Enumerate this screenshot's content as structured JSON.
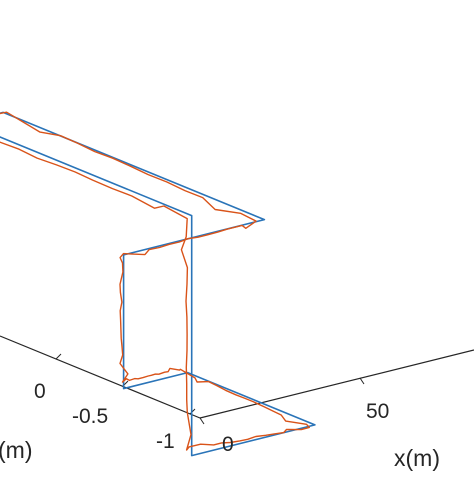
{
  "chart_data": {
    "type": "line",
    "projection": "3d",
    "title": "",
    "xlabel": "x(m)",
    "ylabel": "(m)",
    "zlabel": "",
    "grid": false,
    "x_ticks": [
      {
        "value": 0,
        "label": "0"
      },
      {
        "value": 50,
        "label": "50"
      }
    ],
    "y_ticks": [
      {
        "value": 0,
        "label": "0"
      },
      {
        "value": -0.5,
        "label": "-0.5"
      },
      {
        "value": -1,
        "label": "-1"
      }
    ],
    "colors": {
      "reference": "#2a74b8",
      "estimated": "#d95319",
      "axes": "#262626"
    },
    "series": [
      {
        "role": "reference",
        "points": [
          [
            -22,
            1.95,
            1.6
          ],
          [
            -6,
            1.95,
            1.6
          ],
          [
            0,
            1.95,
            1.6
          ],
          [
            0,
            1.95,
            0.75
          ],
          [
            0,
            1.95,
            0.75
          ],
          [
            62,
            1.95,
            0.75
          ],
          [
            62,
            0.0,
            0.75
          ],
          [
            18,
            0.0,
            0.75
          ],
          [
            18,
            0.0,
            -0.32
          ],
          [
            38,
            0.0,
            -0.32
          ],
          [
            38,
            -0.95,
            -0.32
          ],
          [
            -0.5,
            -0.95,
            -0.32
          ],
          [
            -0.5,
            -0.95,
            1.6
          ],
          [
            -0.5,
            1.0,
            1.6
          ],
          [
            -3,
            1.0,
            1.6
          ],
          [
            -3,
            1.0,
            -0.2
          ],
          [
            -30,
            1.0,
            -0.2
          ]
        ]
      },
      {
        "role": "estimated",
        "points": [
          [
            -22,
            1.9,
            1.55
          ],
          [
            -6,
            1.9,
            1.58
          ],
          [
            0.5,
            1.88,
            1.52
          ],
          [
            0.3,
            1.9,
            0.8
          ],
          [
            4,
            1.92,
            0.74
          ],
          [
            61,
            1.9,
            0.78
          ],
          [
            61.5,
            0.05,
            0.72
          ],
          [
            19,
            0.05,
            0.7
          ],
          [
            18.5,
            0.02,
            -0.28
          ],
          [
            37,
            0.03,
            -0.3
          ],
          [
            37.5,
            -0.92,
            -0.35
          ],
          [
            0.0,
            -0.9,
            -0.3
          ],
          [
            0.2,
            -0.9,
            1.55
          ],
          [
            0.0,
            1.05,
            1.55
          ],
          [
            -2.5,
            1.05,
            1.5
          ],
          [
            -2.6,
            1.02,
            -0.15
          ],
          [
            -30,
            1.0,
            -0.18
          ]
        ]
      }
    ]
  }
}
